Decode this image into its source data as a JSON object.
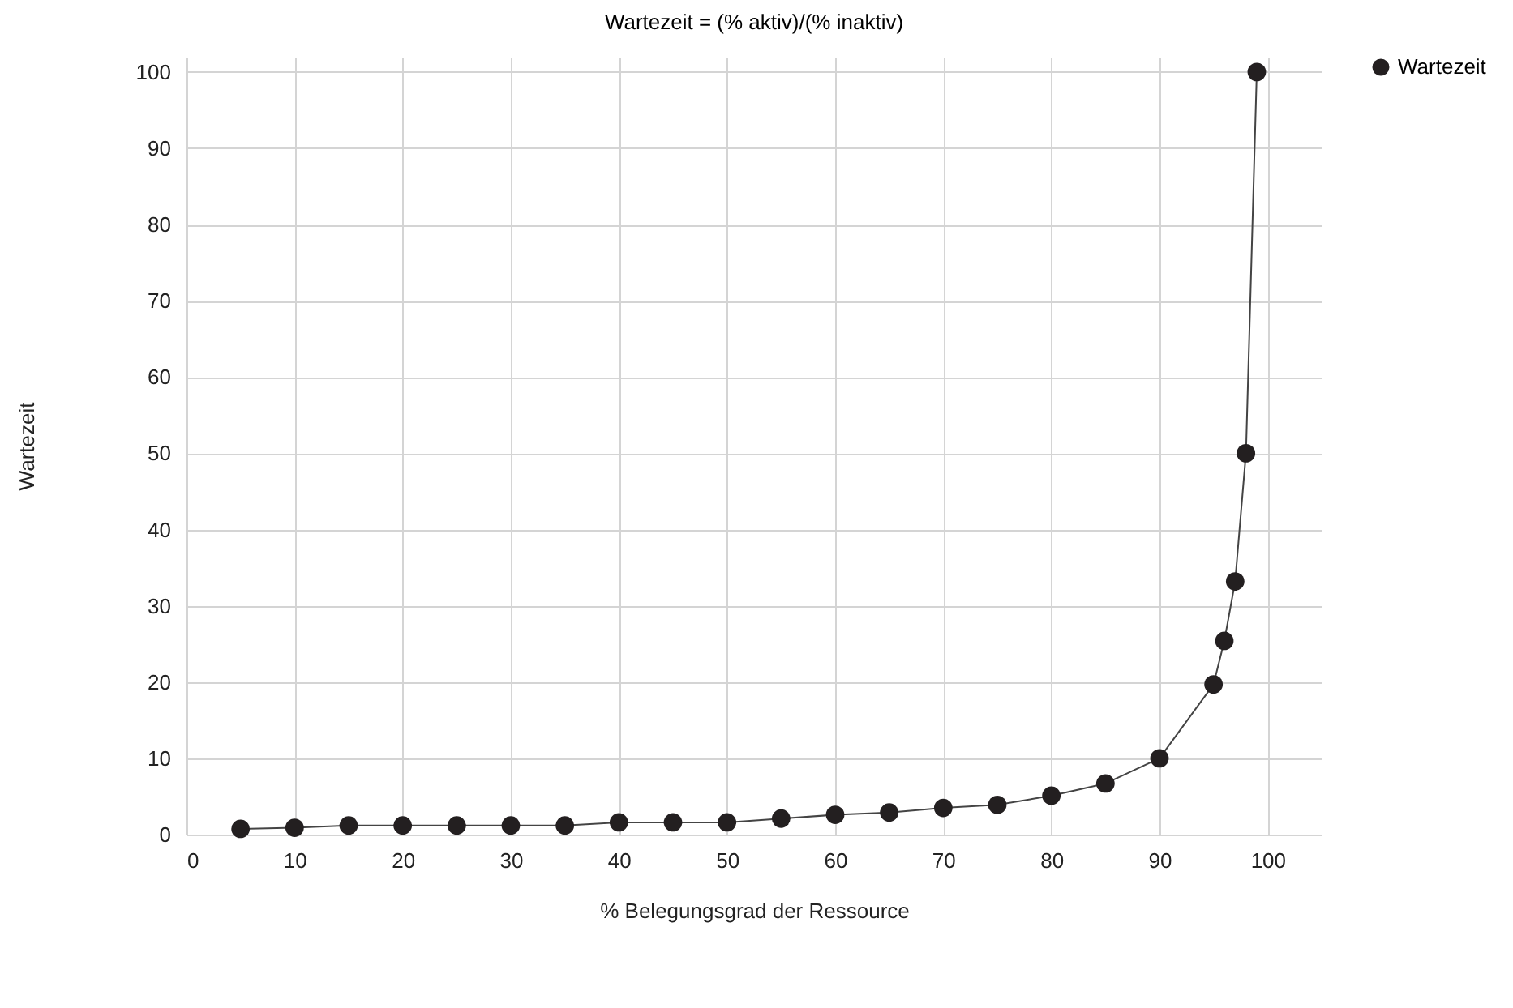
{
  "chart_data": {
    "type": "line",
    "title": "Wartezeit = (% aktiv)/(% inaktiv)",
    "xlabel": "% Belegungsgrad der Ressource",
    "ylabel": "Wartezeit",
    "x": [
      5,
      10,
      15,
      20,
      25,
      30,
      35,
      40,
      45,
      50,
      55,
      60,
      65,
      70,
      75,
      80,
      85,
      90,
      95,
      96,
      97,
      98,
      99
    ],
    "series": [
      {
        "name": "Wartezeit",
        "color": "#231f20",
        "values": [
          0.75,
          0.9,
          1.2,
          1.2,
          1.2,
          1.2,
          1.2,
          1.6,
          1.6,
          1.6,
          2.1,
          2.6,
          2.9,
          3.5,
          3.9,
          5.1,
          6.7,
          10,
          19.7,
          25.4,
          33.2,
          50,
          100
        ]
      }
    ],
    "xlim": [
      0,
      105
    ],
    "ylim": [
      0,
      102
    ],
    "xticks": [
      0,
      10,
      20,
      30,
      40,
      50,
      60,
      70,
      80,
      90,
      100
    ],
    "yticks": [
      0,
      10,
      20,
      30,
      40,
      50,
      60,
      70,
      80,
      90,
      100
    ],
    "grid": true,
    "legend": "right",
    "marker": "circle",
    "line_style": "solid"
  }
}
